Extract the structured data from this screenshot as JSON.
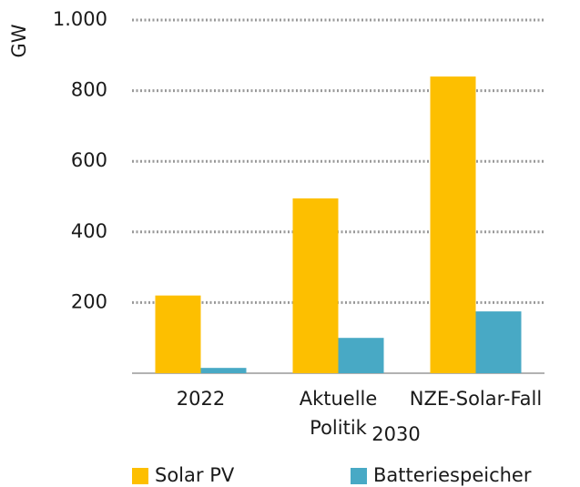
{
  "chart_data": {
    "type": "bar",
    "y_label": "GW",
    "categories": [
      "2022",
      "Aktuelle\nPolitik",
      "NZE-Solar-Fall"
    ],
    "group_label": "2030",
    "series": [
      {
        "name": "Solar PV",
        "color": "#fdbf00",
        "values": [
          220,
          495,
          840
        ]
      },
      {
        "name": "Batteriespeicher",
        "color": "#48a9c5",
        "values": [
          15,
          100,
          175
        ]
      }
    ],
    "ylim": [
      0,
      1000
    ],
    "yticks": [
      200,
      400,
      600,
      800,
      {
        "value": 1000,
        "label": "1.000"
      }
    ],
    "grid": true
  }
}
